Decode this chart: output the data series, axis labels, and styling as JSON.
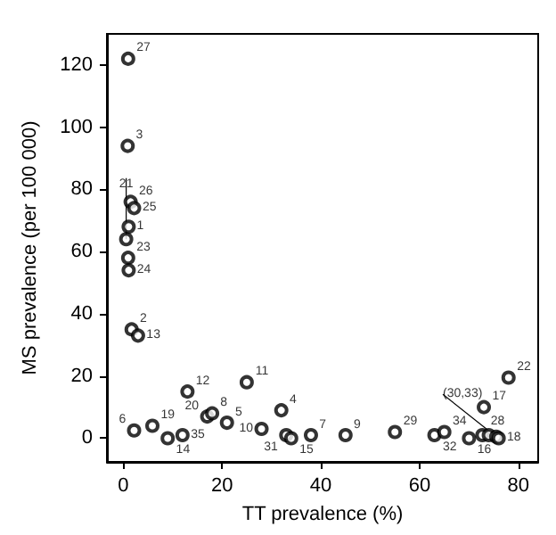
{
  "chart_data": {
    "type": "scatter",
    "xlabel": "TT prevalence (%)",
    "ylabel": "MS prevalence (per 100 000)",
    "x": [
      1.0,
      0.9,
      1.5,
      2.2,
      1.1,
      0.6,
      1.0,
      1.1,
      1.7,
      3.0,
      13,
      25,
      2.2,
      5.9,
      9,
      12,
      17,
      18,
      21,
      28,
      32,
      33,
      34,
      38,
      45,
      55,
      63,
      65,
      70,
      72.7,
      73,
      74,
      75.5,
      76,
      78
    ],
    "series": [
      {
        "color": "#000000",
        "values": [
          122,
          94,
          76,
          74,
          68,
          64,
          58,
          54,
          35,
          33,
          15,
          18,
          2.5,
          4,
          0,
          1,
          7,
          8,
          5,
          3,
          9,
          1,
          0,
          1,
          1,
          2,
          1,
          2,
          0,
          1,
          10,
          1,
          0.5,
          0,
          19.5
        ]
      }
    ],
    "annotations": [
      {
        "text": "27",
        "x": 1.0,
        "y": 122
      },
      {
        "text": "3",
        "x": 0.9,
        "y": 94
      },
      {
        "text": "26",
        "x": 1.5,
        "y": 76
      },
      {
        "text": "25",
        "x": 2.2,
        "y": 74
      },
      {
        "text": "1",
        "x": 1.1,
        "y": 68
      },
      {
        "text": "21",
        "x": 0.6,
        "y": 64
      },
      {
        "text": "23",
        "x": 1.0,
        "y": 58
      },
      {
        "text": "24",
        "x": 1.1,
        "y": 54
      },
      {
        "text": "2",
        "x": 1.7,
        "y": 35
      },
      {
        "text": "13",
        "x": 3.0,
        "y": 33
      },
      {
        "text": "12",
        "x": 13,
        "y": 15
      },
      {
        "text": "11",
        "x": 25,
        "y": 18
      },
      {
        "text": "6",
        "x": 2.2,
        "y": 2.5
      },
      {
        "text": "19",
        "x": 5.9,
        "y": 4
      },
      {
        "text": "14",
        "x": 9,
        "y": 0
      },
      {
        "text": "35",
        "x": 12,
        "y": 1
      },
      {
        "text": "20",
        "x": 17,
        "y": 7
      },
      {
        "text": "8",
        "x": 18,
        "y": 8
      },
      {
        "text": "5",
        "x": 21,
        "y": 5
      },
      {
        "text": "10",
        "x": 28,
        "y": 3
      },
      {
        "text": "4",
        "x": 32,
        "y": 9
      },
      {
        "text": "31",
        "x": 33,
        "y": 1
      },
      {
        "text": "15",
        "x": 34,
        "y": 0
      },
      {
        "text": "7",
        "x": 38,
        "y": 1
      },
      {
        "text": "9",
        "x": 45,
        "y": 1
      },
      {
        "text": "29",
        "x": 55,
        "y": 2
      },
      {
        "text": "32",
        "x": 63,
        "y": 1
      },
      {
        "text": "34",
        "x": 65,
        "y": 2
      },
      {
        "text": "16",
        "x": 70,
        "y": 0
      },
      {
        "text": "28",
        "x": 72.7,
        "y": 1
      },
      {
        "text": "17",
        "x": 73,
        "y": 10
      },
      {
        "text": "(30,33)",
        "x": 75.5,
        "y": 0.5
      },
      {
        "text": "18",
        "x": 76,
        "y": 0
      },
      {
        "text": "22",
        "x": 78,
        "y": 19.5
      }
    ],
    "xlim": [
      -3.3,
      84
    ],
    "ylim": [
      -7.6,
      130
    ],
    "xticks": [
      0,
      20,
      40,
      60,
      80
    ],
    "yticks": [
      0,
      20,
      40,
      60,
      80,
      100,
      120
    ],
    "grid": false,
    "marker": "circle"
  }
}
